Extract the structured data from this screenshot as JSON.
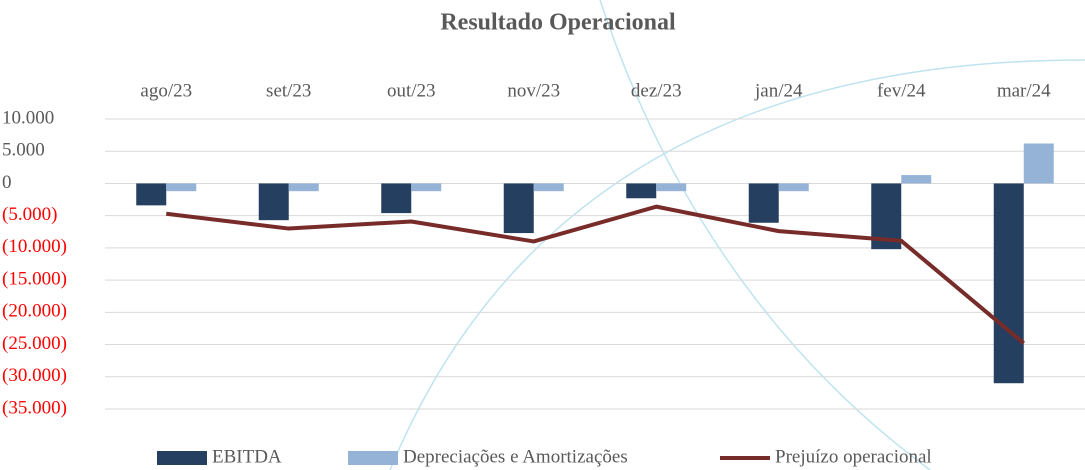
{
  "chart_data": {
    "type": "bar",
    "title": "Resultado Operacional",
    "categories": [
      "ago/23",
      "set/23",
      "out/23",
      "nov/23",
      "dez/23",
      "jan/24",
      "fev/24",
      "mar/24"
    ],
    "series": [
      {
        "name": "EBITDA",
        "type": "bar",
        "color": "#243f60",
        "values": [
          -3400,
          -5700,
          -4600,
          -7700,
          -2300,
          -6100,
          -10200,
          -31000
        ]
      },
      {
        "name": "Depreciações e Amortizações",
        "type": "bar",
        "color": "#95b3d7",
        "values": [
          -1200,
          -1200,
          -1200,
          -1200,
          -1200,
          -1200,
          1300,
          6200
        ]
      },
      {
        "name": "Prejuízo operacional",
        "type": "line",
        "color": "#772c2a",
        "values": [
          -4700,
          -7000,
          -5900,
          -9000,
          -3600,
          -7400,
          -8900,
          -24800
        ]
      }
    ],
    "ylim": [
      -35000,
      10000
    ],
    "yticks": [
      {
        "value": 10000,
        "label": "10.000"
      },
      {
        "value": 5000,
        "label": "5.000"
      },
      0,
      {
        "value": -5000,
        "label": "(5.000)"
      },
      {
        "value": -10000,
        "label": "(10.000)"
      },
      {
        "value": -15000,
        "label": "(15.000)"
      },
      {
        "value": -20000,
        "label": "(20.000)"
      },
      {
        "value": -25000,
        "label": "(25.000)"
      },
      {
        "value": -30000,
        "label": "(30.000)"
      },
      {
        "value": -35000,
        "label": "(35.000)"
      }
    ],
    "negative_tick_color": "#ff0000",
    "grid": true,
    "legend": "bottom"
  }
}
